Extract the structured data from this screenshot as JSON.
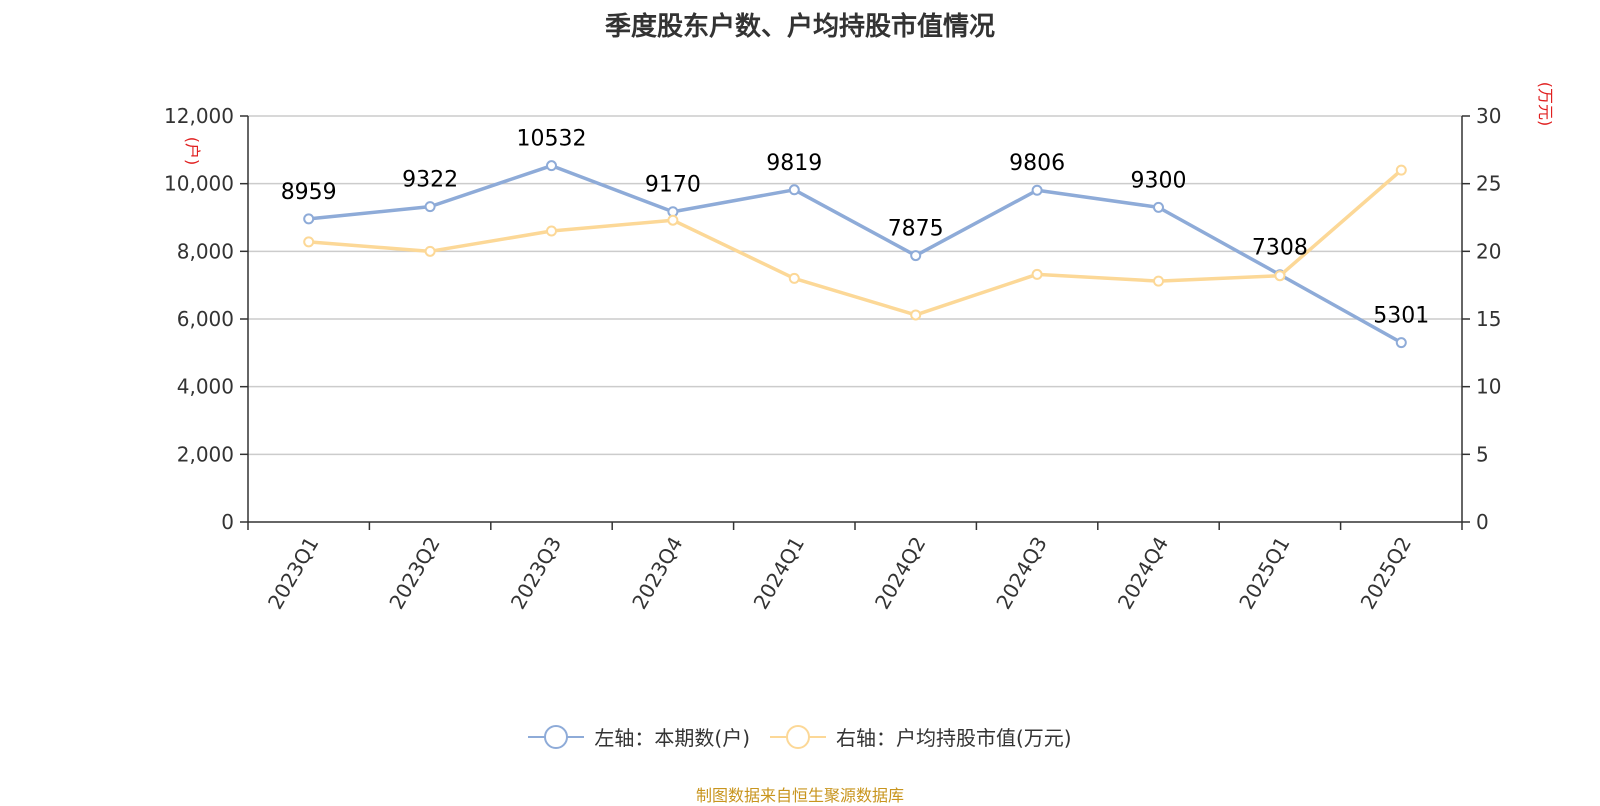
{
  "chart_data": {
    "type": "line",
    "title": "季度股东户数、户均持股市值情况",
    "categories": [
      "2023Q1",
      "2023Q2",
      "2023Q3",
      "2023Q4",
      "2024Q1",
      "2024Q2",
      "2024Q3",
      "2024Q4",
      "2025Q1",
      "2025Q2"
    ],
    "series": [
      {
        "name": "左轴：本期数(户)",
        "axis": "left",
        "color": "#8eabd8",
        "values": [
          8959,
          9322,
          10532,
          9170,
          9819,
          7875,
          9806,
          9300,
          7308,
          5301
        ],
        "show_labels": true
      },
      {
        "name": "右轴：户均持股市值(万元)",
        "axis": "right",
        "color": "#fcd897",
        "values": [
          20.7,
          20.0,
          21.5,
          22.3,
          18.0,
          15.3,
          18.3,
          17.8,
          18.2,
          26.0
        ],
        "show_labels": false
      }
    ],
    "y_left": {
      "unit": "(户)",
      "ylim": [
        0,
        12000
      ],
      "ticks": [
        0,
        2000,
        4000,
        6000,
        8000,
        10000,
        12000
      ],
      "tick_labels": [
        "0",
        "2,000",
        "4,000",
        "6,000",
        "8,000",
        "10,000",
        "12,000"
      ]
    },
    "y_right": {
      "unit": "(万元)",
      "ylim": [
        0,
        30
      ],
      "ticks": [
        0,
        5,
        10,
        15,
        20,
        25,
        30
      ],
      "tick_labels": [
        "0",
        "5",
        "10",
        "15",
        "20",
        "25",
        "30"
      ]
    },
    "grid": true,
    "legend_position": "bottom-center"
  },
  "source": "制图数据来自恒生聚源数据库"
}
